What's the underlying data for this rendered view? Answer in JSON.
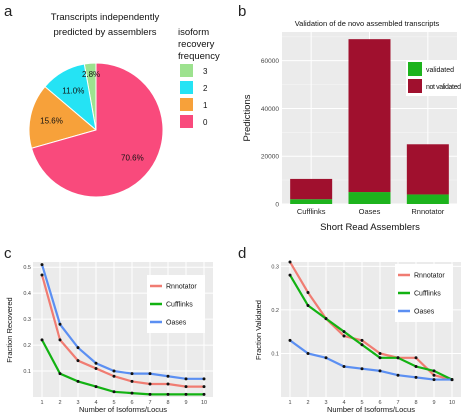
{
  "panel_labels": [
    "a",
    "b",
    "c",
    "d"
  ],
  "chart_data": [
    {
      "panel": "a",
      "type": "pie",
      "title": "Transcripts independently\npredicted by assemblers",
      "legend_title": "isoform\nrecovery\nfrequency",
      "slices": [
        {
          "label": "3",
          "value": 2.8,
          "display": "2.8%",
          "color": "#9de28f"
        },
        {
          "label": "2",
          "value": 11.0,
          "display": "11.0%",
          "color": "#25e3f4"
        },
        {
          "label": "1",
          "value": 15.6,
          "display": "15.6%",
          "color": "#f7a13a"
        },
        {
          "label": "0",
          "value": 70.6,
          "display": "70.6%",
          "color": "#f94a7c"
        }
      ]
    },
    {
      "panel": "b",
      "type": "bar",
      "stacked": true,
      "title": "Validation of de novo assembled transcripts",
      "xlabel": "Short Read Assemblers",
      "ylabel": "Predictions",
      "categories": [
        "Cufflinks",
        "Oases",
        "Rnnotator"
      ],
      "series": [
        {
          "name": "validated",
          "values": [
            2000,
            5000,
            4000
          ],
          "color": "#1db31d"
        },
        {
          "name": "not validated",
          "values": [
            8500,
            64000,
            21000
          ],
          "color": "#a0102e"
        }
      ],
      "ylim": [
        0,
        72000
      ],
      "yticks": [
        0,
        20000,
        40000,
        60000
      ],
      "grid": true,
      "legend_placement": "right"
    },
    {
      "panel": "c",
      "type": "line",
      "xlabel": "Number of Isoforms/Locus",
      "ylabel": "Fraction Recovered",
      "x": [
        1,
        2,
        3,
        4,
        5,
        6,
        7,
        8,
        9,
        10
      ],
      "xlim": [
        0.5,
        10.5
      ],
      "ylim": [
        0,
        0.52
      ],
      "yticks": [
        0.1,
        0.2,
        0.3,
        0.4,
        0.5
      ],
      "series": [
        {
          "name": "Rnnotator",
          "values": [
            0.47,
            0.22,
            0.14,
            0.11,
            0.08,
            0.06,
            0.05,
            0.05,
            0.04,
            0.04
          ],
          "color": "#f07c72"
        },
        {
          "name": "Cufflinks",
          "values": [
            0.22,
            0.09,
            0.06,
            0.04,
            0.02,
            0.015,
            0.01,
            0.01,
            0.01,
            0.01
          ],
          "color": "#12b212"
        },
        {
          "name": "Oases",
          "values": [
            0.51,
            0.28,
            0.19,
            0.13,
            0.1,
            0.09,
            0.09,
            0.08,
            0.07,
            0.07
          ],
          "color": "#5b8ff2"
        }
      ],
      "grid": true,
      "legend_placement": "top-right"
    },
    {
      "panel": "d",
      "type": "line",
      "xlabel": "Number of Isoforms/Locus",
      "ylabel": "Fraction Validated",
      "x": [
        1,
        2,
        3,
        4,
        5,
        6,
        7,
        8,
        9,
        10
      ],
      "xlim": [
        0.5,
        10.5
      ],
      "ylim": [
        0,
        0.31
      ],
      "yticks": [
        0.1,
        0.2,
        0.3
      ],
      "series": [
        {
          "name": "Rnnotator",
          "values": [
            0.31,
            0.24,
            0.18,
            0.14,
            0.13,
            0.1,
            0.09,
            0.09,
            0.05,
            0.04
          ],
          "color": "#f07c72"
        },
        {
          "name": "Cufflinks",
          "values": [
            0.28,
            0.21,
            0.18,
            0.15,
            0.12,
            0.09,
            0.09,
            0.07,
            0.06,
            0.04
          ],
          "color": "#12b212"
        },
        {
          "name": "Oases",
          "values": [
            0.13,
            0.1,
            0.09,
            0.07,
            0.065,
            0.06,
            0.05,
            0.045,
            0.04,
            0.04
          ],
          "color": "#5b8ff2"
        }
      ],
      "grid": true,
      "legend_placement": "top-right"
    }
  ]
}
